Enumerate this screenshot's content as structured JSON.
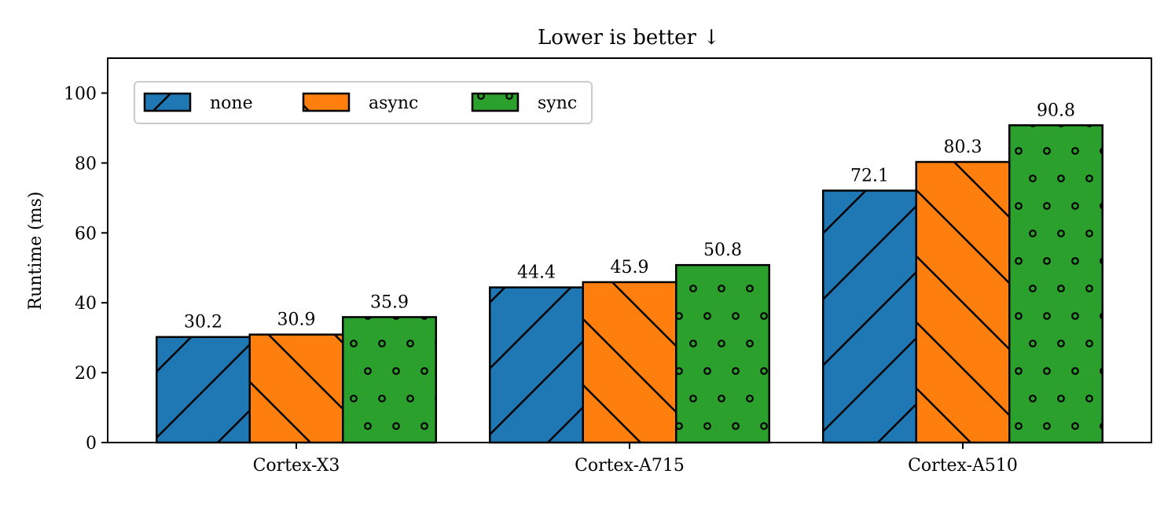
{
  "chart_data": {
    "type": "bar",
    "title": "Lower is better ↓",
    "xlabel": "",
    "ylabel": "Runtime (ms)",
    "categories": [
      "Cortex-X3",
      "Cortex-A715",
      "Cortex-A510"
    ],
    "ylim": [
      0,
      110
    ],
    "yticks": [
      0,
      20,
      40,
      60,
      80,
      100
    ],
    "grid": false,
    "legend_position": "top-left",
    "series": [
      {
        "name": "none",
        "values": [
          30.2,
          44.4,
          72.1
        ],
        "labels": [
          "30.2",
          "44.4",
          "72.1"
        ],
        "color": "#1f77b4",
        "hatch": "forward-diagonal"
      },
      {
        "name": "async",
        "values": [
          30.9,
          45.9,
          80.3
        ],
        "labels": [
          "30.9",
          "45.9",
          "80.3"
        ],
        "color": "#ff7f0e",
        "hatch": "back-diagonal"
      },
      {
        "name": "sync",
        "values": [
          35.9,
          50.8,
          90.8
        ],
        "labels": [
          "35.9",
          "50.8",
          "90.8"
        ],
        "color": "#2ca02c",
        "hatch": "dots"
      }
    ]
  }
}
